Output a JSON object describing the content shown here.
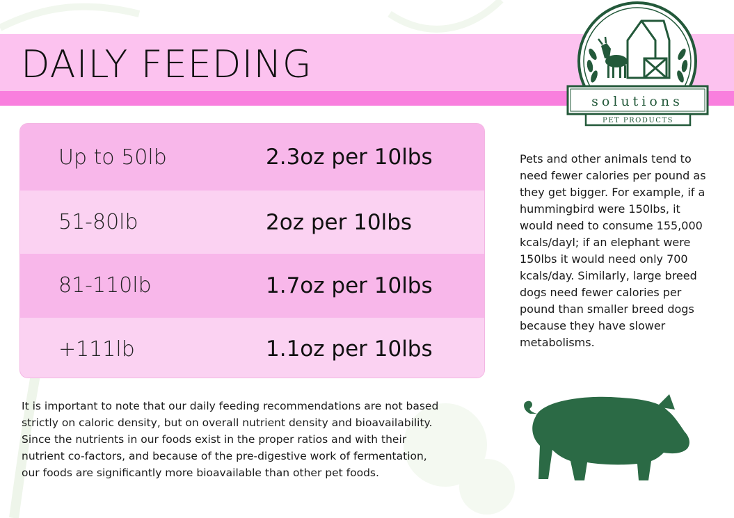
{
  "header": {
    "title": "DAILY FEEDING"
  },
  "logo": {
    "brand": "solutions",
    "tagline": "PET PRODUCTS"
  },
  "feeding_table": {
    "rows": [
      {
        "weight": "Up to 50lb",
        "amount": "2.3oz per 10lbs"
      },
      {
        "weight": "51-80lb",
        "amount": "2oz per 10lbs"
      },
      {
        "weight": "81-110lb",
        "amount": "1.7oz per 10lbs"
      },
      {
        "weight": "+111lb",
        "amount": "1.1oz per 10lbs"
      }
    ]
  },
  "side_note": "Pets and other animals tend to need fewer calories per pound as they get bigger. For example, if a hummingbird were 150lbs, it would need to consume 155,000 kcals/dayl; if an elephant were 150lbs it would need only 700 kcals/day. Similarly, large breed dogs need fewer calories per pound than smaller breed dogs because they have slower metabolisms.",
  "footer_note": "It is important to note that our daily feeding recommendations are not based strictly on caloric density, but on overall nutrient density and bioavailability. Since the nutrients in our foods exist in the proper ratios and with their nutrient co-factors, and because of the pre-digestive work of fermentation, our foods are significantly more bioavailable than other pet foods.",
  "colors": {
    "header_band": "#fcc2ef",
    "header_stripe": "#f97fde",
    "row_dark": "#f8b7ea",
    "row_light": "#fbd2f2",
    "brand_green": "#23593a"
  },
  "icons": [
    "farm-logo-icon",
    "pig-icon"
  ]
}
